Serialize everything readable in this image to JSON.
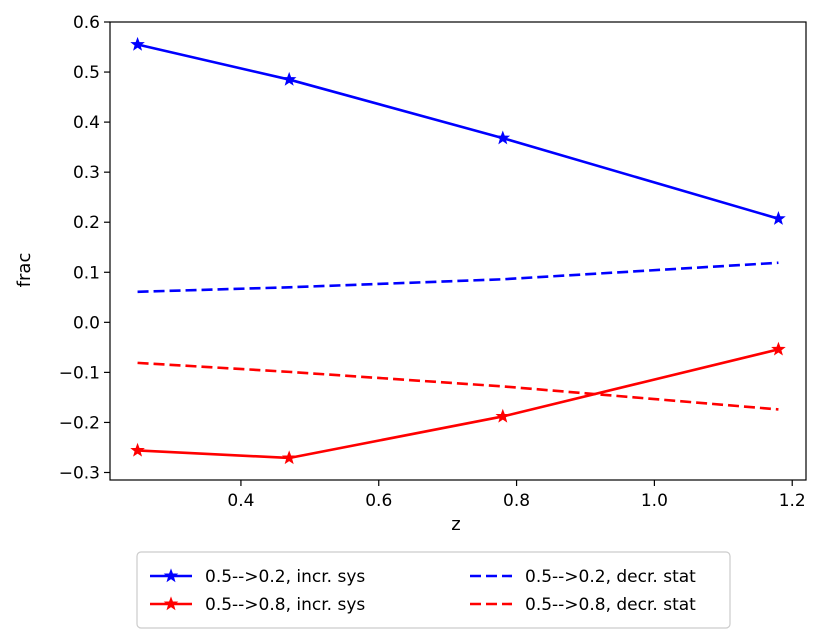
{
  "chart_data": {
    "type": "line",
    "title": "",
    "xlabel": "z",
    "ylabel": "frac",
    "xlim": [
      0.21,
      1.22
    ],
    "ylim": [
      -0.315,
      0.6
    ],
    "xticks": [
      0.4,
      0.6,
      0.8,
      1.0,
      1.2
    ],
    "xtick_labels": [
      "0.4",
      "0.6",
      "0.8",
      "1.0",
      "1.2"
    ],
    "yticks": [
      0.6,
      0.5,
      0.4,
      0.3,
      0.2,
      0.1,
      0.0,
      -0.1,
      -0.2,
      -0.3
    ],
    "ytick_labels": [
      "0.6",
      "0.5",
      "0.4",
      "0.3",
      "0.2",
      "0.1",
      "0.0",
      "−0.1",
      "−0.2",
      "−0.3"
    ],
    "grid": false,
    "legend_position": "below",
    "x": [
      0.25,
      0.47,
      0.78,
      1.18
    ],
    "series": [
      {
        "name": "0.5-->0.2, incr. sys",
        "color": "#0000ff",
        "style": "solid",
        "marker": "star",
        "values": [
          0.555,
          0.485,
          0.368,
          0.207
        ]
      },
      {
        "name": "0.5-->0.8, incr. sys",
        "color": "#ff0000",
        "style": "solid",
        "marker": "star",
        "values": [
          -0.256,
          -0.271,
          -0.188,
          -0.054
        ]
      },
      {
        "name": "0.5-->0.2, decr. stat",
        "color": "#0000ff",
        "style": "dashed",
        "marker": "none",
        "values": [
          0.061,
          0.07,
          0.086,
          0.119
        ]
      },
      {
        "name": "0.5-->0.8, decr. stat",
        "color": "#ff0000",
        "style": "dashed",
        "marker": "none",
        "values": [
          -0.081,
          -0.099,
          -0.128,
          -0.174
        ]
      }
    ]
  }
}
